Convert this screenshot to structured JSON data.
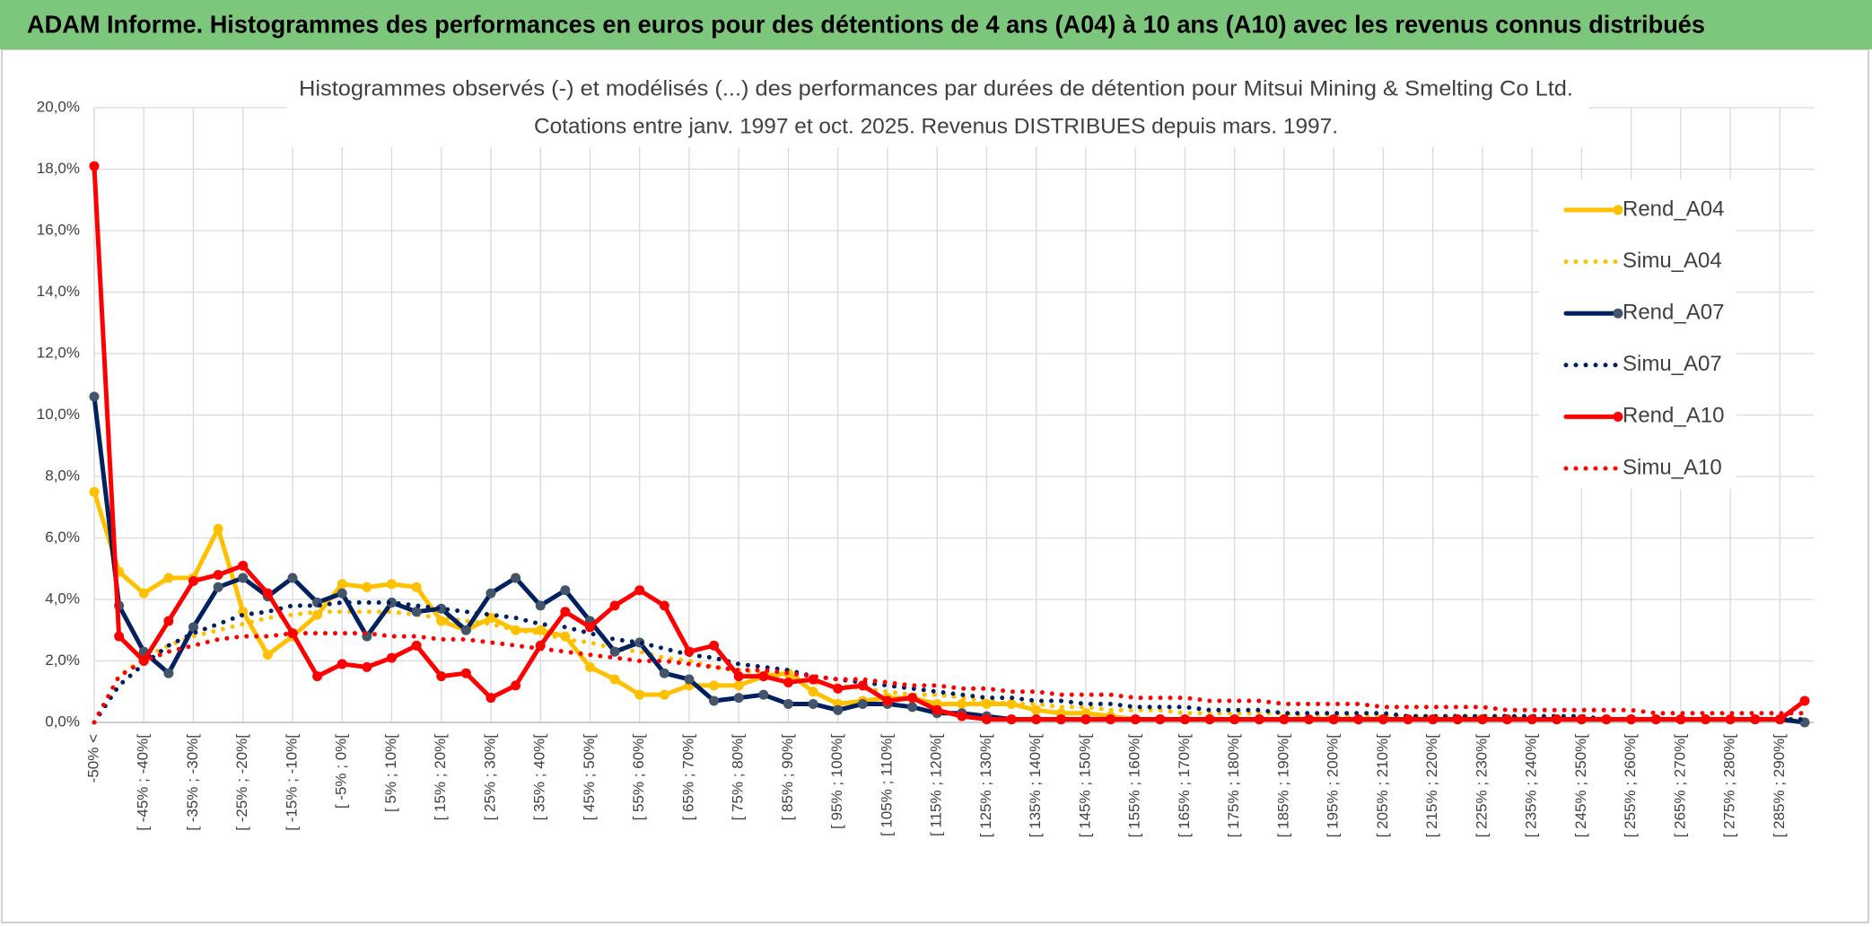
{
  "header": "ADAM Informe. Histogrammes des performances en euros pour des détentions de 4 ans (A04) à 10 ans (A10) avec les revenus connus distribués",
  "chart_data": {
    "type": "line",
    "title": "Histogrammes observés (-) et modélisés (...) des performances par durées de détention pour Mitsui Mining & Smelting Co Ltd.",
    "subtitle": "Cotations entre janv. 1997 et oct. 2025. Revenus DISTRIBUES depuis mars. 1997.",
    "categories": [
      "-50% <",
      null,
      "[ -45% ; -40%[",
      null,
      "[ -35% ; -30%[",
      null,
      "[ -25% ; -20%[",
      null,
      "[ -15% ; -10%[",
      null,
      "[ -5% ; 0%[",
      null,
      "[ 5% ; 10%[",
      null,
      "[ 15% ; 20%[",
      null,
      "[ 25% ; 30%[",
      null,
      "[ 35% ; 40%[",
      null,
      "[ 45% ; 50%[",
      null,
      "[ 55% ; 60%[",
      null,
      "[ 65% ; 70%[",
      null,
      "[ 75% ; 80%[",
      null,
      "[ 85% ; 90%[",
      null,
      "[ 95% ; 100%[",
      null,
      "[ 105% ; 110%[",
      null,
      "[ 115% ; 120%[",
      null,
      "[ 125% ; 130%[",
      null,
      "[ 135% ; 140%[",
      null,
      "[ 145% ; 150%[",
      null,
      "[ 155% ; 160%[",
      null,
      "[ 165% ; 170%[",
      null,
      "[ 175% ; 180%[",
      null,
      "[ 185% ; 190%[",
      null,
      "[ 195% ; 200%[",
      null,
      "[ 205% ; 210%[",
      null,
      "[ 215% ; 220%[",
      null,
      "[ 225% ; 230%[",
      null,
      "[ 235% ; 240%[",
      null,
      "[ 245% ; 250%[",
      null,
      "[ 255% ; 260%[",
      null,
      "[ 265% ; 270%[",
      null,
      "[ 275% ; 280%[",
      null,
      "[ 285% ; 290%[",
      null
    ],
    "series": [
      {
        "name": "Rend_A04",
        "color": "#ffc000",
        "line_style": "solid",
        "markers": true,
        "values": [
          7.5,
          4.9,
          4.2,
          4.7,
          4.7,
          6.3,
          3.6,
          2.2,
          2.8,
          3.5,
          4.5,
          4.4,
          4.5,
          4.4,
          3.3,
          3.0,
          3.4,
          3.0,
          3.0,
          2.8,
          1.8,
          1.4,
          0.9,
          0.9,
          1.2,
          1.2,
          1.2,
          1.5,
          1.6,
          1.0,
          0.6,
          0.7,
          0.8,
          0.8,
          0.6,
          0.6,
          0.6,
          0.6,
          0.4,
          0.3,
          0.3,
          0.2,
          0.1,
          0.1,
          0.1,
          0.1,
          0.1,
          0.1,
          0.1,
          0.1,
          0.1,
          0.1,
          0.1,
          0.1,
          0.1,
          0.1,
          0.1,
          0.1,
          0.1,
          0.1,
          0.1,
          0.1,
          0.1,
          0.1,
          0.1,
          0.1,
          0.1,
          0.1,
          0.1,
          0.0
        ]
      },
      {
        "name": "Simu_A04",
        "color": "#ffc000",
        "line_style": "dotted",
        "markers": false,
        "values": [
          0.0,
          1.5,
          2.1,
          2.5,
          2.8,
          3.0,
          3.2,
          3.4,
          3.5,
          3.6,
          3.6,
          3.6,
          3.6,
          3.5,
          3.4,
          3.3,
          3.2,
          3.0,
          2.9,
          2.7,
          2.6,
          2.4,
          2.3,
          2.1,
          2.0,
          1.8,
          1.7,
          1.6,
          1.5,
          1.3,
          1.2,
          1.1,
          1.0,
          0.9,
          0.9,
          0.8,
          0.7,
          0.6,
          0.6,
          0.5,
          0.5,
          0.4,
          0.4,
          0.4,
          0.3,
          0.3,
          0.3,
          0.3,
          0.3,
          0.2,
          0.2,
          0.2,
          0.2,
          0.2,
          0.2,
          0.2,
          0.2,
          0.2,
          0.1,
          0.1,
          0.1,
          0.1,
          0.1,
          0.1,
          0.1,
          0.1,
          0.1,
          0.1,
          0.1,
          0.1
        ]
      },
      {
        "name": "Rend_A07",
        "color": "#002060",
        "line_style": "solid",
        "markers": true,
        "values": [
          10.6,
          3.8,
          2.3,
          1.6,
          3.1,
          4.4,
          4.7,
          4.1,
          4.7,
          3.9,
          4.2,
          2.8,
          3.9,
          3.6,
          3.7,
          3.0,
          4.2,
          4.7,
          3.8,
          4.3,
          3.3,
          2.3,
          2.6,
          1.6,
          1.4,
          0.7,
          0.8,
          0.9,
          0.6,
          0.6,
          0.4,
          0.6,
          0.6,
          0.5,
          0.3,
          0.3,
          0.2,
          0.1,
          0.1,
          0.1,
          0.1,
          0.1,
          0.1,
          0.1,
          0.1,
          0.1,
          0.1,
          0.1,
          0.1,
          0.1,
          0.1,
          0.1,
          0.1,
          0.1,
          0.1,
          0.1,
          0.1,
          0.1,
          0.1,
          0.1,
          0.1,
          0.1,
          0.1,
          0.1,
          0.1,
          0.1,
          0.1,
          0.1,
          0.1,
          0.0
        ]
      },
      {
        "name": "Simu_A07",
        "color": "#002060",
        "line_style": "dotted",
        "markers": false,
        "values": [
          0.0,
          1.2,
          1.9,
          2.5,
          2.9,
          3.2,
          3.5,
          3.6,
          3.8,
          3.8,
          3.9,
          3.9,
          3.9,
          3.8,
          3.7,
          3.6,
          3.5,
          3.4,
          3.2,
          3.1,
          2.9,
          2.7,
          2.6,
          2.4,
          2.2,
          2.1,
          1.9,
          1.8,
          1.7,
          1.5,
          1.4,
          1.3,
          1.2,
          1.1,
          1.0,
          0.9,
          0.8,
          0.8,
          0.7,
          0.7,
          0.6,
          0.6,
          0.5,
          0.5,
          0.5,
          0.4,
          0.4,
          0.4,
          0.3,
          0.3,
          0.3,
          0.3,
          0.3,
          0.2,
          0.2,
          0.2,
          0.2,
          0.2,
          0.2,
          0.2,
          0.2,
          0.1,
          0.1,
          0.1,
          0.1,
          0.1,
          0.1,
          0.1,
          0.1,
          0.1
        ]
      },
      {
        "name": "Rend_A10",
        "color": "#ff0000",
        "line_style": "solid",
        "markers": true,
        "values": [
          18.1,
          2.8,
          2.0,
          3.3,
          4.6,
          4.8,
          5.1,
          4.2,
          2.9,
          1.5,
          1.9,
          1.8,
          2.1,
          2.5,
          1.5,
          1.6,
          0.8,
          1.2,
          2.5,
          3.6,
          3.1,
          3.8,
          4.3,
          3.8,
          2.3,
          2.5,
          1.5,
          1.5,
          1.3,
          1.4,
          1.1,
          1.2,
          0.7,
          0.8,
          0.4,
          0.2,
          0.1,
          0.1,
          0.1,
          0.1,
          0.1,
          0.1,
          0.1,
          0.1,
          0.1,
          0.1,
          0.1,
          0.1,
          0.1,
          0.1,
          0.1,
          0.1,
          0.1,
          0.1,
          0.1,
          0.1,
          0.1,
          0.1,
          0.1,
          0.1,
          0.1,
          0.1,
          0.1,
          0.1,
          0.1,
          0.1,
          0.1,
          0.1,
          0.1,
          0.7
        ]
      },
      {
        "name": "Simu_A10",
        "color": "#ff0000",
        "line_style": "dotted",
        "markers": false,
        "values": [
          0.0,
          1.5,
          2.0,
          2.3,
          2.5,
          2.7,
          2.8,
          2.8,
          2.9,
          2.9,
          2.9,
          2.9,
          2.8,
          2.8,
          2.7,
          2.7,
          2.6,
          2.5,
          2.4,
          2.3,
          2.2,
          2.1,
          2.0,
          2.0,
          1.9,
          1.8,
          1.7,
          1.7,
          1.6,
          1.5,
          1.4,
          1.4,
          1.3,
          1.2,
          1.2,
          1.1,
          1.1,
          1.0,
          1.0,
          0.9,
          0.9,
          0.9,
          0.8,
          0.8,
          0.8,
          0.7,
          0.7,
          0.7,
          0.6,
          0.6,
          0.6,
          0.6,
          0.5,
          0.5,
          0.5,
          0.5,
          0.5,
          0.4,
          0.4,
          0.4,
          0.4,
          0.4,
          0.4,
          0.3,
          0.3,
          0.3,
          0.3,
          0.3,
          0.3,
          0.3
        ]
      }
    ],
    "ylim": [
      0,
      20
    ],
    "yticks": [
      {
        "value": 0,
        "label": "0,0%"
      },
      {
        "value": 2,
        "label": "2,0%"
      },
      {
        "value": 4,
        "label": "4,0%"
      },
      {
        "value": 6,
        "label": "6,0%"
      },
      {
        "value": 8,
        "label": "8,0%"
      },
      {
        "value": 10,
        "label": "10,0%"
      },
      {
        "value": 12,
        "label": "12,0%"
      },
      {
        "value": 14,
        "label": "14,0%"
      },
      {
        "value": 16,
        "label": "16,0%"
      },
      {
        "value": 18,
        "label": "18,0%"
      },
      {
        "value": 20,
        "label": "20,0%"
      }
    ],
    "grid": true,
    "legend": "right"
  }
}
